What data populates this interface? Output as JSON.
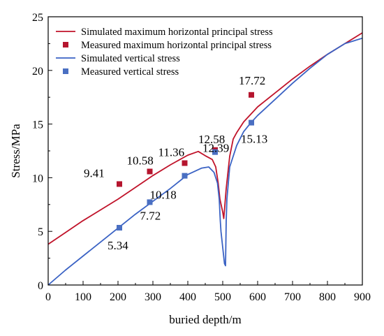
{
  "chart_data": {
    "type": "line",
    "xlabel": "buried depth/m",
    "ylabel": "Stress/MPa",
    "xlim": [
      0,
      900
    ],
    "ylim": [
      0,
      25
    ],
    "xticks": [
      "0",
      "100",
      "200",
      "300",
      "400",
      "500",
      "600",
      "700",
      "800",
      "900"
    ],
    "yticks": [
      "0",
      "5",
      "10",
      "15",
      "20",
      "25"
    ],
    "grid": false,
    "legend_position": "top-left",
    "series": [
      {
        "name": "Simulated maximum horizontal principal stress",
        "kind": "line",
        "color": "#c0132a",
        "x": [
          0,
          50,
          100,
          150,
          200,
          250,
          300,
          350,
          400,
          430,
          450,
          470,
          480,
          487,
          492,
          500,
          503,
          510,
          520,
          530,
          540,
          560,
          580,
          600,
          650,
          700,
          750,
          800,
          850,
          900
        ],
        "y": [
          3.8,
          4.9,
          6.0,
          7.0,
          8.0,
          9.1,
          10.2,
          11.2,
          12.1,
          12.45,
          12.05,
          11.7,
          11.0,
          9.5,
          8.0,
          6.8,
          6.2,
          9.0,
          12.0,
          13.6,
          14.2,
          15.2,
          15.9,
          16.6,
          17.9,
          19.2,
          20.4,
          21.5,
          22.5,
          23.5
        ]
      },
      {
        "name": "Measured maximum horizontal principal stress",
        "kind": "scatter",
        "color": "#b5152e",
        "x": [
          204,
          291,
          391,
          478,
          582
        ],
        "y": [
          9.41,
          10.58,
          11.36,
          12.58,
          17.72
        ],
        "labels": [
          "9.41",
          "10.58",
          "11.36",
          "12.58",
          "17.72"
        ]
      },
      {
        "name": "Simulated vertical stress",
        "kind": "line",
        "color": "#3a62c4",
        "x": [
          0,
          50,
          100,
          150,
          200,
          250,
          300,
          350,
          400,
          440,
          460,
          475,
          485,
          490,
          493,
          495,
          505,
          508,
          510,
          512,
          520,
          540,
          560,
          580,
          600,
          650,
          700,
          750,
          800,
          850,
          900
        ],
        "y": [
          0,
          1.4,
          2.7,
          4.0,
          5.3,
          6.6,
          7.8,
          9.0,
          10.3,
          10.9,
          11.0,
          10.5,
          9.5,
          8.0,
          6.0,
          5.0,
          2.0,
          1.8,
          6.0,
          8.0,
          11.0,
          13.0,
          14.3,
          15.1,
          15.8,
          17.3,
          18.8,
          20.2,
          21.5,
          22.5,
          23.0
        ]
      },
      {
        "name": "Measured vertical stress",
        "kind": "scatter",
        "color": "#4a6fc2",
        "x": [
          204,
          291,
          391,
          478,
          582
        ],
        "y": [
          5.34,
          7.72,
          10.18,
          12.39,
          15.13
        ],
        "labels": [
          "5.34",
          "7.72",
          "10.18",
          "12.39",
          "15.13"
        ]
      }
    ]
  }
}
